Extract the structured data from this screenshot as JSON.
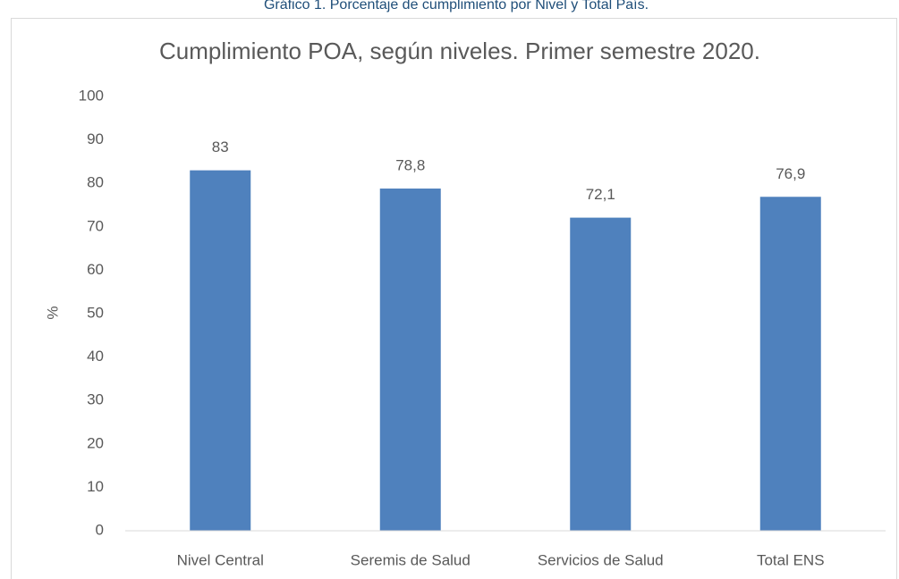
{
  "caption": "Gráfico 1. Porcentaje de cumplimiento por Nivel y Total País.",
  "chart_data": {
    "type": "bar",
    "title": "Cumplimiento POA, según niveles. Primer semestre 2020.",
    "y_label": "%",
    "categories": [
      "Nivel Central",
      "Seremis de Salud",
      "Servicios de Salud",
      "Total ENS"
    ],
    "values": [
      83,
      78.8,
      72.1,
      76.9
    ],
    "value_labels": [
      "83",
      "78,8",
      "72,1",
      "76,9"
    ],
    "color": "#4f81bd",
    "ylim": [
      0,
      100
    ],
    "yticks": [
      0,
      10,
      20,
      30,
      40,
      50,
      60,
      70,
      80,
      90,
      100
    ],
    "grid": false
  }
}
